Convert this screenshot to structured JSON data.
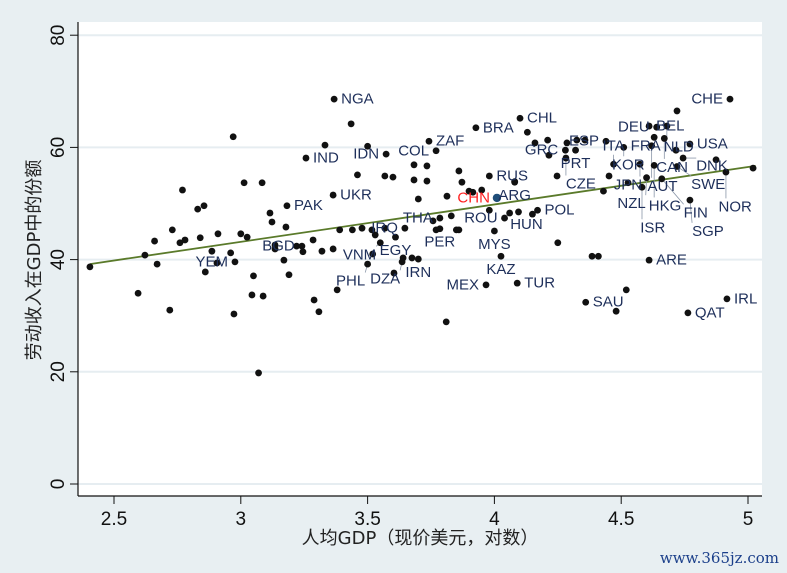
{
  "chart_data": {
    "type": "scatter",
    "title": "",
    "xlabel": "人均GDP（现价美元，对数）",
    "ylabel": "劳动收入在GDP中的份额",
    "xlim": [
      2.35,
      5.05
    ],
    "ylim": [
      -2,
      83
    ],
    "xticks": [
      "2.5",
      "3",
      "3.5",
      "4",
      "4.5",
      "5"
    ],
    "xtick_values": [
      2.5,
      3,
      3.5,
      4,
      4.5,
      5
    ],
    "yticks": [
      "0",
      "20",
      "40",
      "60",
      "80"
    ],
    "ytick_values": [
      0,
      20,
      40,
      60,
      80
    ],
    "grid": true,
    "colors": {
      "point": "#111111",
      "highlight": "#1f4e79",
      "highlight_label": "#ff2020",
      "fit_line": "#5a7a2a",
      "label": "#1e2f5a"
    },
    "fit_line": {
      "x": [
        2.405,
        5.03
      ],
      "y": [
        39.2,
        56.7
      ]
    },
    "labeled_points": [
      {
        "label": "CHE",
        "x": 4.929,
        "y": 68.6
      },
      {
        "label": "NGA",
        "x": 3.368,
        "y": 68.6
      },
      {
        "label": "CHL",
        "x": 4.101,
        "y": 65.2
      },
      {
        "label": "BRA",
        "x": 3.927,
        "y": 63.5
      },
      {
        "label": "ZAF",
        "x": 3.742,
        "y": 61.1
      },
      {
        "label": "COL",
        "x": 3.77,
        "y": 59.4
      },
      {
        "label": "IND",
        "x": 3.257,
        "y": 58.1
      },
      {
        "label": "IDN",
        "x": 3.573,
        "y": 58.8
      },
      {
        "label": "BEL",
        "x": 4.61,
        "y": 63.8
      },
      {
        "label": "DEU",
        "x": 4.64,
        "y": 63.6
      },
      {
        "label": "NLD",
        "x": 4.68,
        "y": 63.8
      },
      {
        "label": "FRA",
        "x": 4.63,
        "y": 61.8
      },
      {
        "label": "CAN",
        "x": 4.67,
        "y": 61.6
      },
      {
        "label": "ESP",
        "x": 4.44,
        "y": 61.1
      },
      {
        "label": "KOR",
        "x": 4.51,
        "y": 60.0
      },
      {
        "label": "AUT",
        "x": 4.62,
        "y": 60.3
      },
      {
        "label": "USA",
        "x": 4.771,
        "y": 60.6
      },
      {
        "label": "GRC",
        "x": 4.28,
        "y": 59.5
      },
      {
        "label": "PRT",
        "x": 4.32,
        "y": 59.5
      },
      {
        "label": "CZE",
        "x": 4.282,
        "y": 58.1
      },
      {
        "label": "DNK",
        "x": 4.744,
        "y": 58.1
      },
      {
        "label": "ITA",
        "x": 4.47,
        "y": 57.0
      },
      {
        "label": "JPN",
        "x": 4.574,
        "y": 57.0
      },
      {
        "label": "HKG",
        "x": 4.63,
        "y": 56.8
      },
      {
        "label": "SWE",
        "x": 4.72,
        "y": 56.6
      },
      {
        "label": "NZL",
        "x": 4.6,
        "y": 54.6
      },
      {
        "label": "FIN",
        "x": 4.66,
        "y": 54.4
      },
      {
        "label": "NOR",
        "x": 4.913,
        "y": 55.6
      },
      {
        "label": "ISR",
        "x": 4.582,
        "y": 52.9
      },
      {
        "label": "SGP",
        "x": 4.771,
        "y": 50.6
      },
      {
        "label": "RUS",
        "x": 3.98,
        "y": 54.9
      },
      {
        "label": "ARG",
        "x": 4.08,
        "y": 53.8
      },
      {
        "label": "CHN",
        "x": 4.01,
        "y": 51.0,
        "highlight": true
      },
      {
        "label": "UKR",
        "x": 3.364,
        "y": 51.5
      },
      {
        "label": "PAK",
        "x": 3.182,
        "y": 49.6
      },
      {
        "label": "POL",
        "x": 4.17,
        "y": 48.8
      },
      {
        "label": "HUN",
        "x": 4.15,
        "y": 48.1
      },
      {
        "label": "ROU",
        "x": 4.04,
        "y": 47.4
      },
      {
        "label": "THA",
        "x": 3.785,
        "y": 47.4
      },
      {
        "label": "PER",
        "x": 3.785,
        "y": 45.5
      },
      {
        "label": "IRQ",
        "x": 3.647,
        "y": 45.6
      },
      {
        "label": "MYS",
        "x": 4.0,
        "y": 45.1
      },
      {
        "label": "EGY",
        "x": 3.61,
        "y": 44.0
      },
      {
        "label": "VNM",
        "x": 3.55,
        "y": 43.0
      },
      {
        "label": "BGD",
        "x": 3.241,
        "y": 42.4
      },
      {
        "label": "KAZ",
        "x": 4.026,
        "y": 40.6
      },
      {
        "label": "IRN",
        "x": 3.7,
        "y": 40.1
      },
      {
        "label": "ARE",
        "x": 4.61,
        "y": 39.9
      },
      {
        "label": "YEM",
        "x": 2.977,
        "y": 39.6
      },
      {
        "label": "DZA",
        "x": 3.636,
        "y": 39.6
      },
      {
        "label": "PHL",
        "x": 3.5,
        "y": 39.2
      },
      {
        "label": "TUR",
        "x": 4.09,
        "y": 35.8
      },
      {
        "label": "MEX",
        "x": 3.967,
        "y": 35.5
      },
      {
        "label": "IRL",
        "x": 4.917,
        "y": 33.0
      },
      {
        "label": "SAU",
        "x": 4.36,
        "y": 32.4
      },
      {
        "label": "QAT",
        "x": 4.763,
        "y": 30.5
      }
    ],
    "points": [
      [
        2.405,
        38.7
      ],
      [
        2.595,
        34.0
      ],
      [
        2.622,
        40.8
      ],
      [
        2.66,
        43.3
      ],
      [
        2.67,
        39.2
      ],
      [
        2.72,
        31.0
      ],
      [
        2.73,
        45.3
      ],
      [
        2.76,
        43.0
      ],
      [
        2.78,
        43.5
      ],
      [
        2.77,
        52.4
      ],
      [
        2.83,
        49.0
      ],
      [
        2.855,
        49.6
      ],
      [
        2.84,
        43.9
      ],
      [
        2.86,
        37.8
      ],
      [
        2.886,
        41.5
      ],
      [
        2.906,
        39.4
      ],
      [
        2.91,
        44.6
      ],
      [
        2.973,
        30.3
      ],
      [
        2.97,
        61.9
      ],
      [
        2.96,
        41.2
      ],
      [
        3.0,
        44.6
      ],
      [
        3.013,
        53.7
      ],
      [
        3.025,
        44.0
      ],
      [
        3.044,
        33.7
      ],
      [
        3.05,
        37.1
      ],
      [
        3.07,
        19.8
      ],
      [
        3.084,
        53.7
      ],
      [
        3.088,
        33.5
      ],
      [
        3.115,
        48.3
      ],
      [
        3.123,
        46.7
      ],
      [
        3.135,
        42.6
      ],
      [
        3.135,
        41.9
      ],
      [
        3.17,
        39.9
      ],
      [
        3.178,
        45.8
      ],
      [
        3.19,
        37.3
      ],
      [
        3.22,
        42.4
      ],
      [
        3.245,
        41.4
      ],
      [
        3.285,
        43.5
      ],
      [
        3.289,
        32.8
      ],
      [
        3.308,
        30.7
      ],
      [
        3.32,
        41.5
      ],
      [
        3.332,
        60.4
      ],
      [
        3.364,
        41.9
      ],
      [
        3.38,
        34.6
      ],
      [
        3.39,
        45.3
      ],
      [
        3.435,
        64.2
      ],
      [
        3.44,
        45.3
      ],
      [
        3.46,
        55.1
      ],
      [
        3.478,
        45.6
      ],
      [
        3.5,
        60.2
      ],
      [
        3.517,
        45.3
      ],
      [
        3.52,
        41.0
      ],
      [
        3.53,
        44.4
      ],
      [
        3.568,
        54.9
      ],
      [
        3.568,
        45.6
      ],
      [
        3.6,
        54.7
      ],
      [
        3.604,
        37.6
      ],
      [
        3.64,
        40.3
      ],
      [
        3.675,
        40.3
      ],
      [
        3.683,
        56.9
      ],
      [
        3.683,
        54.2
      ],
      [
        3.7,
        50.8
      ],
      [
        3.734,
        56.7
      ],
      [
        3.734,
        54.0
      ],
      [
        3.758,
        46.9
      ],
      [
        3.77,
        45.3
      ],
      [
        3.813,
        51.3
      ],
      [
        3.81,
        28.9
      ],
      [
        3.83,
        47.8
      ],
      [
        3.85,
        45.3
      ],
      [
        3.86,
        45.3
      ],
      [
        3.86,
        55.8
      ],
      [
        3.872,
        53.8
      ],
      [
        3.9,
        52.2
      ],
      [
        3.915,
        52.0
      ],
      [
        3.95,
        52.4
      ],
      [
        3.98,
        48.8
      ],
      [
        4.06,
        48.3
      ],
      [
        4.08,
        53.9
      ],
      [
        4.095,
        48.5
      ],
      [
        4.13,
        62.7
      ],
      [
        4.16,
        60.8
      ],
      [
        4.21,
        61.3
      ],
      [
        4.215,
        58.6
      ],
      [
        4.247,
        54.9
      ],
      [
        4.25,
        43.0
      ],
      [
        4.286,
        60.8
      ],
      [
        4.325,
        61.3
      ],
      [
        4.357,
        61.3
      ],
      [
        4.385,
        40.6
      ],
      [
        4.41,
        40.6
      ],
      [
        4.43,
        52.2
      ],
      [
        4.452,
        54.9
      ],
      [
        4.48,
        30.8
      ],
      [
        4.52,
        34.6
      ],
      [
        4.527,
        53.7
      ],
      [
        4.72,
        66.5
      ],
      [
        4.716,
        59.5
      ],
      [
        4.874,
        57.8
      ],
      [
        5.02,
        56.3
      ]
    ]
  },
  "watermark": "www.365jz.com"
}
